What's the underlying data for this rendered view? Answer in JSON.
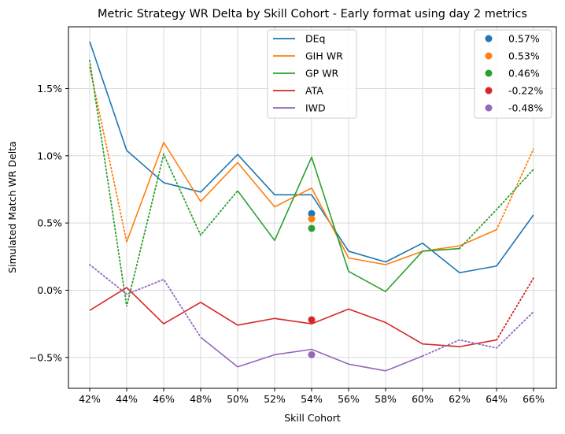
{
  "chart_data": {
    "type": "line",
    "title": "Metric Strategy WR Delta by Skill Cohort - Early format using day 2 metrics",
    "xlabel": "Skill Cohort",
    "ylabel": "Simulated Match WR Delta",
    "x_categories": [
      "42%",
      "44%",
      "46%",
      "48%",
      "50%",
      "52%",
      "54%",
      "56%",
      "58%",
      "60%",
      "62%",
      "64%",
      "66%"
    ],
    "yticks": [
      -0.005,
      0.0,
      0.005,
      0.01,
      0.015
    ],
    "ytick_labels": [
      "−0.5%",
      "0.0%",
      "0.5%",
      "1.0%",
      "1.5%"
    ],
    "ylim": [
      -0.0073,
      0.0196
    ],
    "grid": true,
    "series": [
      {
        "name": "DEq",
        "color": "#1f77b4",
        "solid": [
          0.0185,
          0.0104,
          0.008,
          0.0073,
          0.0101,
          0.0071,
          0.0071,
          0.0029,
          0.0021,
          0.0035,
          0.0013,
          0.0018,
          0.0056
        ],
        "dotted": [
          null,
          null,
          null,
          null,
          null,
          null,
          null,
          null,
          null,
          null,
          null,
          null,
          null
        ]
      },
      {
        "name": "GIH WR",
        "color": "#ff7f0e",
        "solid": [
          null,
          0.0036,
          0.011,
          0.0066,
          0.0095,
          0.0062,
          0.0076,
          0.0024,
          0.0019,
          0.0029,
          0.0033,
          0.0045,
          null
        ],
        "dotted": [
          0.0166,
          0.0036,
          null,
          null,
          null,
          null,
          null,
          null,
          null,
          null,
          null,
          0.0045,
          0.0105
        ]
      },
      {
        "name": "GP WR",
        "color": "#2ca02c",
        "solid": [
          null,
          null,
          null,
          null,
          0.0074,
          0.0037,
          0.0099,
          0.0014,
          -0.0001,
          0.0029,
          0.0031,
          null,
          null
        ],
        "dotted": [
          0.0171,
          -0.0012,
          0.0101,
          0.0041,
          0.0074,
          null,
          null,
          null,
          null,
          null,
          0.0031,
          0.006,
          0.009
        ]
      },
      {
        "name": "ATA",
        "color": "#d62728",
        "solid": [
          -0.0015,
          0.0002,
          -0.0025,
          -0.0009,
          -0.0026,
          -0.0021,
          -0.0025,
          -0.0014,
          -0.0024,
          -0.004,
          -0.0042,
          -0.0037,
          null
        ],
        "dotted": [
          null,
          null,
          null,
          null,
          null,
          null,
          null,
          null,
          null,
          null,
          null,
          -0.0037,
          0.0009
        ]
      },
      {
        "name": "IWD",
        "color": "#9467bd",
        "solid": [
          null,
          null,
          null,
          -0.0035,
          -0.0057,
          -0.0048,
          -0.0044,
          -0.0055,
          -0.006,
          -0.0049,
          null,
          null,
          null
        ],
        "dotted": [
          0.0019,
          -0.0003,
          0.0008,
          -0.0035,
          null,
          null,
          null,
          null,
          null,
          -0.0049,
          -0.0037,
          -0.0043,
          -0.0016
        ]
      }
    ],
    "summary_points": [
      {
        "label": "0.57%",
        "color": "#1f77b4",
        "x": "54%",
        "y": 0.0057
      },
      {
        "label": "0.53%",
        "color": "#ff7f0e",
        "x": "54%",
        "y": 0.0053
      },
      {
        "label": "0.46%",
        "color": "#2ca02c",
        "x": "54%",
        "y": 0.0046
      },
      {
        "label": "-0.22%",
        "color": "#d62728",
        "x": "54%",
        "y": -0.0022
      },
      {
        "label": "-0.48%",
        "color": "#9467bd",
        "x": "54%",
        "y": -0.0048
      }
    ],
    "legend_lines_placement": "upper-center",
    "legend_points_placement": "upper-right"
  }
}
